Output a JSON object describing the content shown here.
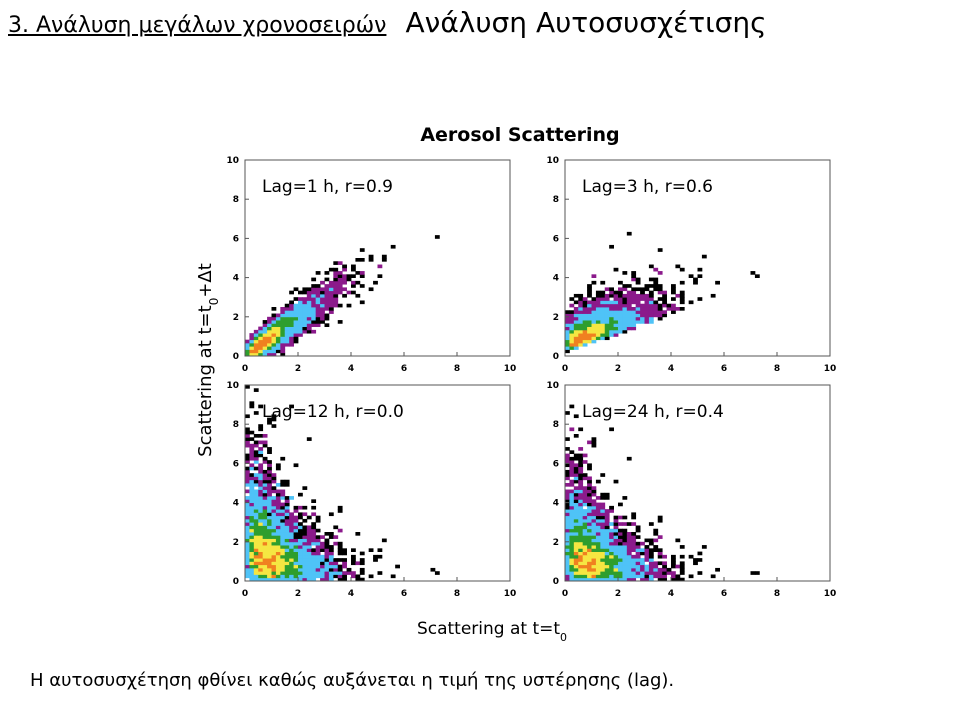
{
  "header": {
    "section": "3. Ανάλυση μεγάλων χρονοσειρών",
    "topic": "Ανάλυση Αυτοσυσχέτισης"
  },
  "caption": "Η αυτοσυσχέτηση φθίνει καθώς αυξάνεται η τιμή της υστέρησης (lag).",
  "chart_data": {
    "type": "heatmap",
    "title": "Aerosol Scattering",
    "xlabel": "Scattering at t=t0",
    "ylabel": "Scattering at t=t0+Δt",
    "xlim": [
      0,
      10
    ],
    "ylim": [
      0,
      10
    ],
    "x_ticks": [
      0,
      2,
      4,
      6,
      8,
      10
    ],
    "y_ticks": [
      0,
      2,
      4,
      6,
      8,
      10
    ],
    "grid": false,
    "density_colors": [
      "#000000",
      "#8b1a8b",
      "#4fc3f7",
      "#2e9e2e",
      "#f5e642",
      "#f08020"
    ],
    "panels": [
      {
        "label": "Lag=1 h, r=0.9",
        "lag_h": 1,
        "r": 0.9
      },
      {
        "label": "Lag=3 h, r=0.6",
        "lag_h": 3,
        "r": 0.6
      },
      {
        "label": "Lag=12 h, r=0.0",
        "lag_h": 12,
        "r": 0.0
      },
      {
        "label": "Lag=24 h, r=0.4",
        "lag_h": 24,
        "r": 0.4
      }
    ]
  }
}
